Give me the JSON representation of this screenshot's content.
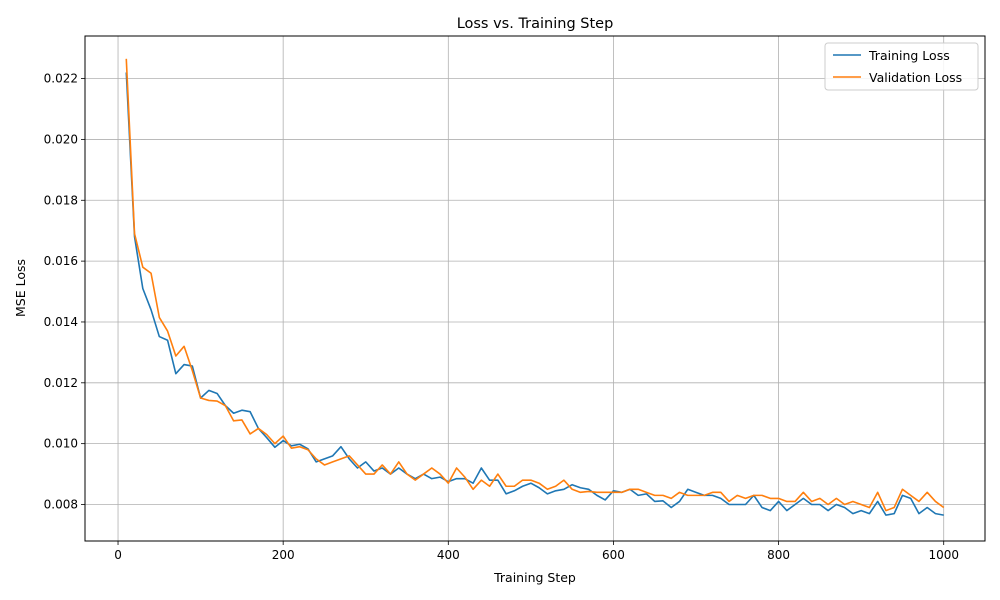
{
  "chart_data": {
    "type": "line",
    "title": "Loss vs. Training Step",
    "xlabel": "Training Step",
    "ylabel": "MSE Loss",
    "xlim": [
      -40,
      1050
    ],
    "ylim": [
      0.0068,
      0.0234
    ],
    "xticks": [
      0,
      200,
      400,
      600,
      800,
      1000
    ],
    "yticks": [
      0.008,
      0.01,
      0.012,
      0.014,
      0.016,
      0.018,
      0.02,
      0.022
    ],
    "grid": true,
    "legend_position": "top-right",
    "x": [
      10,
      20,
      30,
      40,
      50,
      60,
      70,
      80,
      90,
      100,
      110,
      120,
      130,
      140,
      150,
      160,
      170,
      180,
      190,
      200,
      210,
      220,
      230,
      240,
      250,
      260,
      270,
      280,
      290,
      300,
      310,
      320,
      330,
      340,
      350,
      360,
      370,
      380,
      390,
      400,
      410,
      420,
      430,
      440,
      450,
      460,
      470,
      480,
      490,
      500,
      510,
      520,
      530,
      540,
      550,
      560,
      570,
      580,
      590,
      600,
      610,
      620,
      630,
      640,
      650,
      660,
      670,
      680,
      690,
      700,
      710,
      720,
      730,
      740,
      750,
      760,
      770,
      780,
      790,
      800,
      810,
      820,
      830,
      840,
      850,
      860,
      870,
      880,
      890,
      900,
      910,
      920,
      930,
      940,
      950,
      960,
      970,
      980,
      990,
      1000
    ],
    "series": [
      {
        "name": "Training Loss",
        "color": "#1f77b4",
        "values": [
          0.0222,
          0.0168,
          0.0151,
          0.0144,
          0.01352,
          0.0134,
          0.0123,
          0.0126,
          0.01255,
          0.0115,
          0.01175,
          0.01165,
          0.01125,
          0.011,
          0.0111,
          0.01105,
          0.0105,
          0.0102,
          0.00988,
          0.0101,
          0.00993,
          0.00998,
          0.00983,
          0.0094,
          0.0095,
          0.0096,
          0.0099,
          0.0095,
          0.0092,
          0.0094,
          0.0091,
          0.0092,
          0.009,
          0.0092,
          0.009,
          0.00885,
          0.009,
          0.00885,
          0.0089,
          0.00875,
          0.00885,
          0.00885,
          0.0087,
          0.0092,
          0.0088,
          0.0088,
          0.00835,
          0.00845,
          0.0086,
          0.0087,
          0.00855,
          0.00835,
          0.00845,
          0.0085,
          0.00865,
          0.00855,
          0.0085,
          0.0083,
          0.00815,
          0.00845,
          0.0084,
          0.0085,
          0.0083,
          0.00835,
          0.0081,
          0.00812,
          0.0079,
          0.0081,
          0.0085,
          0.0084,
          0.0083,
          0.0083,
          0.0082,
          0.008,
          0.008,
          0.008,
          0.0083,
          0.0079,
          0.0078,
          0.0081,
          0.0078,
          0.008,
          0.0082,
          0.008,
          0.008,
          0.0078,
          0.008,
          0.0079,
          0.0077,
          0.0078,
          0.0077,
          0.0081,
          0.00765,
          0.0077,
          0.0083,
          0.0082,
          0.0077,
          0.0079,
          0.0077,
          0.00765
        ]
      },
      {
        "name": "Validation Loss",
        "color": "#ff7f0e",
        "values": [
          0.02265,
          0.0169,
          0.0158,
          0.0156,
          0.01415,
          0.0137,
          0.01288,
          0.0132,
          0.0124,
          0.0115,
          0.01142,
          0.0114,
          0.01125,
          0.01075,
          0.01078,
          0.01032,
          0.0105,
          0.0103,
          0.01,
          0.01025,
          0.00985,
          0.0099,
          0.0098,
          0.0095,
          0.0093,
          0.0094,
          0.0095,
          0.0096,
          0.0093,
          0.009,
          0.009,
          0.0093,
          0.009,
          0.0094,
          0.009,
          0.0088,
          0.009,
          0.0092,
          0.009,
          0.0087,
          0.0092,
          0.0089,
          0.0085,
          0.0088,
          0.0086,
          0.009,
          0.0086,
          0.0086,
          0.0088,
          0.0088,
          0.0087,
          0.0085,
          0.0086,
          0.0088,
          0.0085,
          0.0084,
          0.00843,
          0.0084,
          0.0084,
          0.0084,
          0.0084,
          0.0085,
          0.0085,
          0.0084,
          0.0083,
          0.0083,
          0.0082,
          0.0084,
          0.0083,
          0.0083,
          0.0083,
          0.0084,
          0.0084,
          0.0081,
          0.0083,
          0.0082,
          0.0083,
          0.0083,
          0.0082,
          0.0082,
          0.0081,
          0.0081,
          0.0084,
          0.0081,
          0.0082,
          0.008,
          0.0082,
          0.008,
          0.0081,
          0.008,
          0.0079,
          0.0084,
          0.0078,
          0.0079,
          0.0085,
          0.0083,
          0.0081,
          0.0084,
          0.0081,
          0.0079
        ]
      }
    ]
  }
}
